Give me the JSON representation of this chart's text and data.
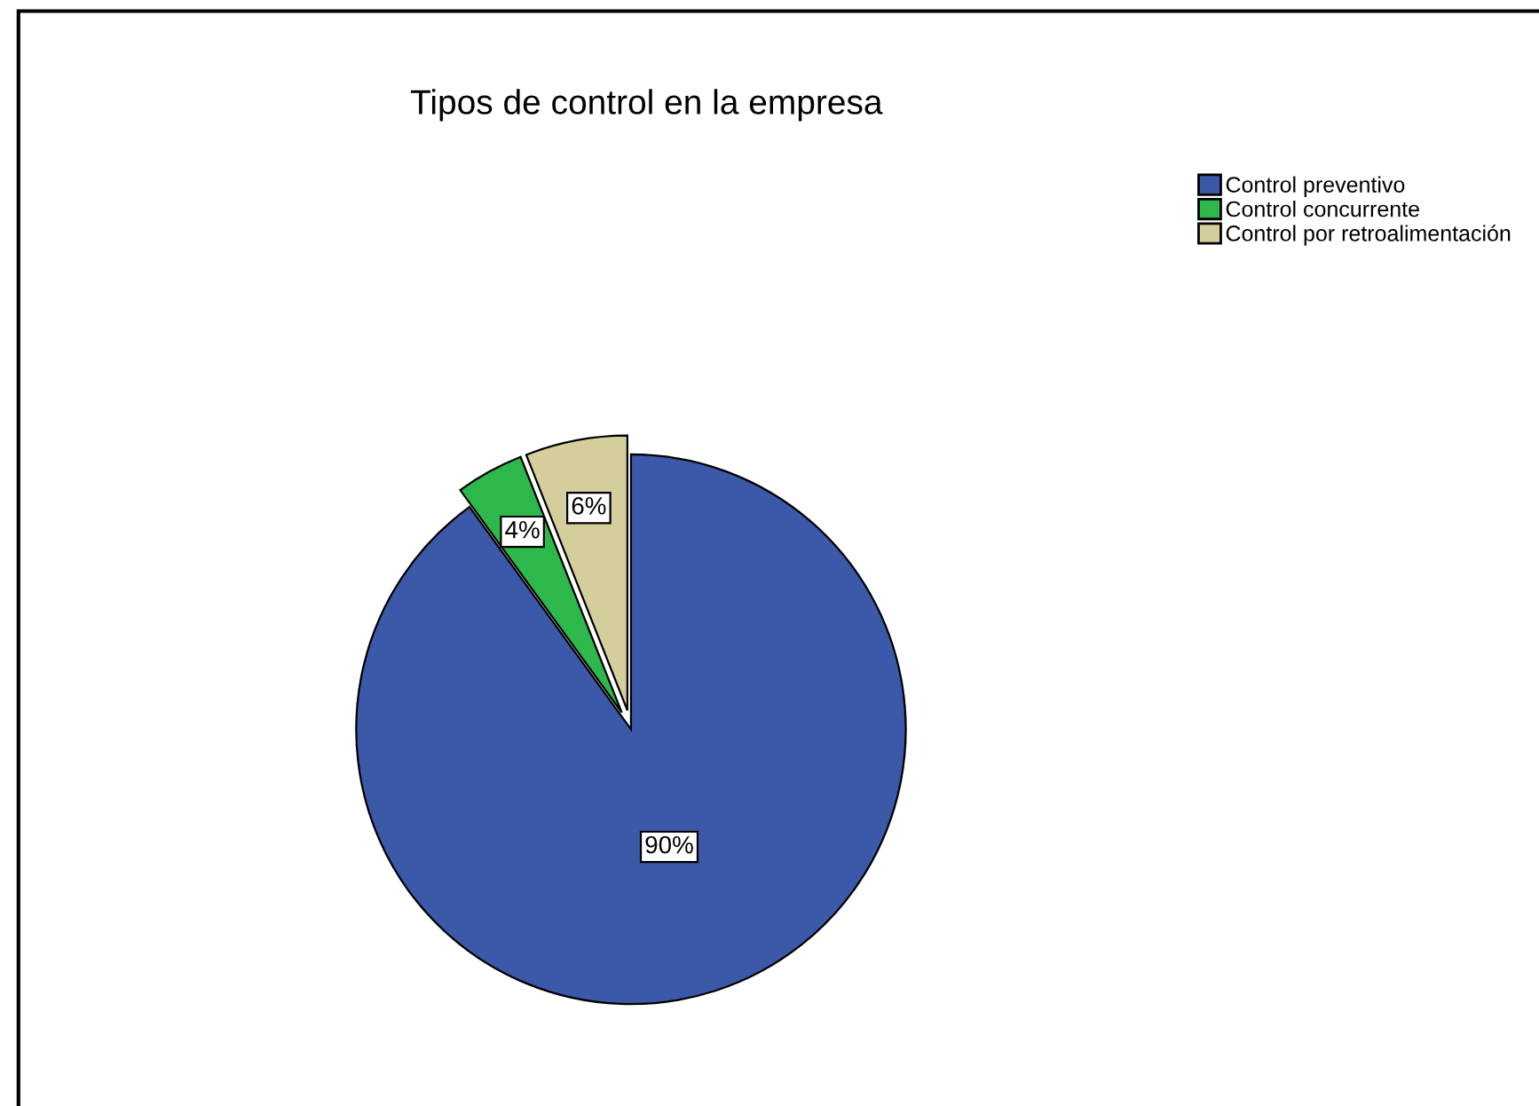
{
  "chart_data": {
    "type": "pie",
    "title": "Tipos de control en la empresa",
    "categories": [
      "Control preventivo",
      "Control concurrente",
      "Control por retroalimentación"
    ],
    "values": [
      90,
      4,
      6
    ],
    "colors": [
      "#3c58a8",
      "#2db84b",
      "#d5cd9b"
    ],
    "value_labels": [
      "90%",
      "4%",
      "6%"
    ],
    "legend": "top right"
  }
}
